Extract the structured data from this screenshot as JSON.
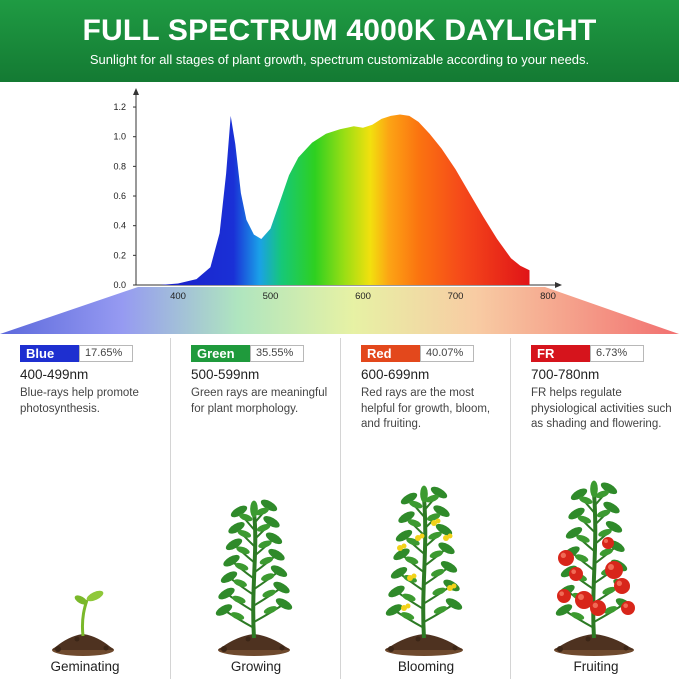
{
  "header": {
    "title": "FULL SPECTRUM 4000K DAYLIGHT",
    "subtitle": "Sunlight for all stages of plant growth, spectrum customizable according to your needs."
  },
  "chart_data": {
    "type": "area",
    "title": "",
    "xlabel": "",
    "ylabel": "",
    "xlim": [
      350,
      800
    ],
    "ylim": [
      0,
      1.2
    ],
    "x_ticks": [
      "400",
      "500",
      "600",
      "700",
      "800"
    ],
    "y_ticks": [
      "0.0",
      "0.2",
      "0.4",
      "0.6",
      "0.8",
      "1.0",
      "1.2"
    ],
    "grid": false,
    "series": [
      {
        "x": [
          380,
          400,
          420,
          435,
          445,
          452,
          457,
          462,
          468,
          474,
          482,
          490,
          500,
          510,
          520,
          530,
          545,
          560,
          575,
          590,
          600,
          610,
          620,
          630,
          640,
          650,
          660,
          672,
          685,
          700,
          715,
          730,
          745,
          760,
          770,
          780
        ],
        "values": [
          0.0,
          0.01,
          0.04,
          0.12,
          0.35,
          0.75,
          1.14,
          0.95,
          0.62,
          0.44,
          0.34,
          0.31,
          0.38,
          0.56,
          0.74,
          0.86,
          0.96,
          1.02,
          1.05,
          1.07,
          1.06,
          1.08,
          1.12,
          1.14,
          1.15,
          1.14,
          1.1,
          1.02,
          0.92,
          0.78,
          0.62,
          0.46,
          0.31,
          0.18,
          0.13,
          0.1
        ]
      }
    ]
  },
  "bands": [
    {
      "name": "Blue",
      "percent": "17.65%",
      "range": "400-499nm",
      "description": "Blue-rays help promote photosynthesis.",
      "stage": "Geminating",
      "color": "#1e2fd0",
      "plant": "seedling"
    },
    {
      "name": "Green",
      "percent": "35.55%",
      "range": "500-599nm",
      "description": "Green rays are meaningful for plant morphology.",
      "stage": "Growing",
      "color": "#1f9a3c",
      "plant": "growing"
    },
    {
      "name": "Red",
      "percent": "40.07%",
      "range": "600-699nm",
      "description": "Red rays are the most helpful for growth, bloom, and fruiting.",
      "stage": "Blooming",
      "color": "#e3481c",
      "plant": "blooming"
    },
    {
      "name": "FR",
      "percent": "6.73%",
      "range": "700-780nm",
      "description": "FR helps regulate physiological activities such as shading and flowering.",
      "stage": "Fruiting",
      "color": "#d6141c",
      "plant": "fruiting"
    }
  ]
}
